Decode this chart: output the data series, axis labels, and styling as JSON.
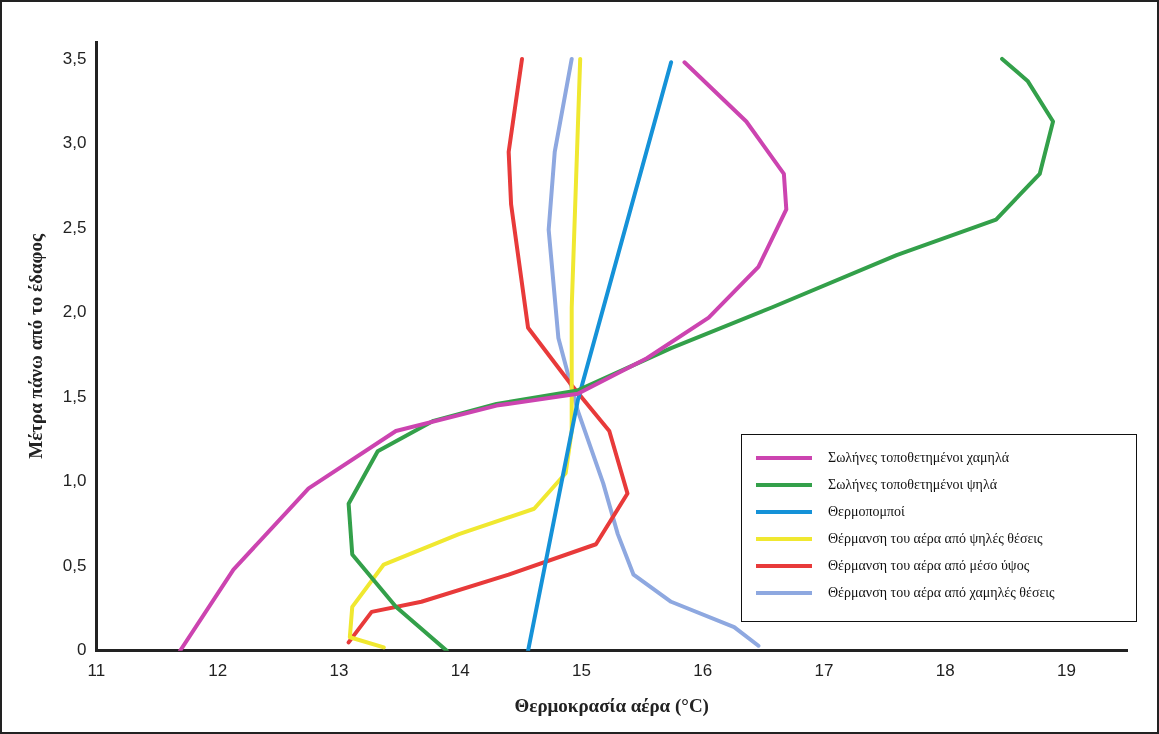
{
  "chart_data": {
    "type": "line",
    "xlabel": "Θερμοκρασία αέρα (°C)",
    "ylabel": "Μέτρα πάνω από το έδαφος",
    "xlim": [
      11,
      19.5
    ],
    "xticks": [
      11,
      12,
      13,
      14,
      15,
      16,
      17,
      18,
      19
    ],
    "ylim": [
      0,
      3.6
    ],
    "yticks": [
      {
        "value": 0,
        "label": "0"
      },
      {
        "value": 0.5,
        "label": "0,5"
      },
      {
        "value": 1,
        "label": "1,0"
      },
      {
        "value": 1.5,
        "label": "1,5"
      },
      {
        "value": 2,
        "label": "2,0"
      },
      {
        "value": 2.5,
        "label": "2,5"
      },
      {
        "value": 3,
        "label": "3,0"
      },
      {
        "value": 3.5,
        "label": "3,5"
      }
    ],
    "grid": false,
    "legend": "bottom right",
    "series": [
      {
        "name": "Σωλήνες τοποθετημένοι χαμηλά",
        "color": "#cc44b0",
        "x": [
          11.69,
          12.13,
          12.75,
          13.47,
          14.3,
          14.97,
          15.54,
          16.05,
          16.46,
          16.69,
          16.67,
          16.36,
          15.85
        ],
        "values": [
          0,
          0.48,
          0.96,
          1.3,
          1.45,
          1.52,
          1.73,
          1.97,
          2.27,
          2.61,
          2.82,
          3.13,
          3.48
        ]
      },
      {
        "name": "Σωλήνες τοποθετημένοι ψηλά",
        "color": "#33a04a",
        "x": [
          13.89,
          13.47,
          13.11,
          13.08,
          13.32,
          13.78,
          14.3,
          14.97,
          15.74,
          16.57,
          17.6,
          18.42,
          18.78,
          18.89,
          18.68,
          18.47
        ],
        "values": [
          0,
          0.26,
          0.57,
          0.87,
          1.18,
          1.36,
          1.46,
          1.54,
          1.79,
          2.03,
          2.34,
          2.55,
          2.82,
          3.13,
          3.37,
          3.5
        ]
      },
      {
        "name": "Θερμοπομποί",
        "color": "#1592d8",
        "x": [
          14.56,
          14.97,
          15.74
        ],
        "values": [
          0,
          1.48,
          3.48
        ]
      },
      {
        "name": "Θέρμανση του αέρα από ψηλές θέσεις",
        "color": "#f0e830",
        "x": [
          13.37,
          13.09,
          13.11,
          13.37,
          13.99,
          14.61,
          14.87,
          14.92,
          14.92,
          14.99
        ],
        "values": [
          0.02,
          0.08,
          0.26,
          0.51,
          0.69,
          0.84,
          1.05,
          1.3,
          2.03,
          3.5
        ]
      },
      {
        "name": "Θέρμανση του αέρα από μέσο ύψος",
        "color": "#e83a3a",
        "x": [
          13.08,
          13.27,
          13.68,
          14.4,
          15.12,
          15.38,
          15.23,
          14.92,
          14.56,
          14.42,
          14.4,
          14.51
        ],
        "values": [
          0.05,
          0.23,
          0.29,
          0.45,
          0.63,
          0.93,
          1.3,
          1.57,
          1.91,
          2.64,
          2.95,
          3.5
        ]
      },
      {
        "name": "Θέρμανση του αέρα από χαμηλές θέσεις",
        "color": "#8ea8e0",
        "x": [
          16.46,
          16.26,
          15.74,
          15.43,
          15.3,
          15.18,
          14.97,
          14.81,
          14.73,
          14.78,
          14.92
        ],
        "values": [
          0.03,
          0.14,
          0.29,
          0.45,
          0.69,
          0.99,
          1.42,
          1.85,
          2.49,
          2.95,
          3.5
        ]
      }
    ]
  }
}
